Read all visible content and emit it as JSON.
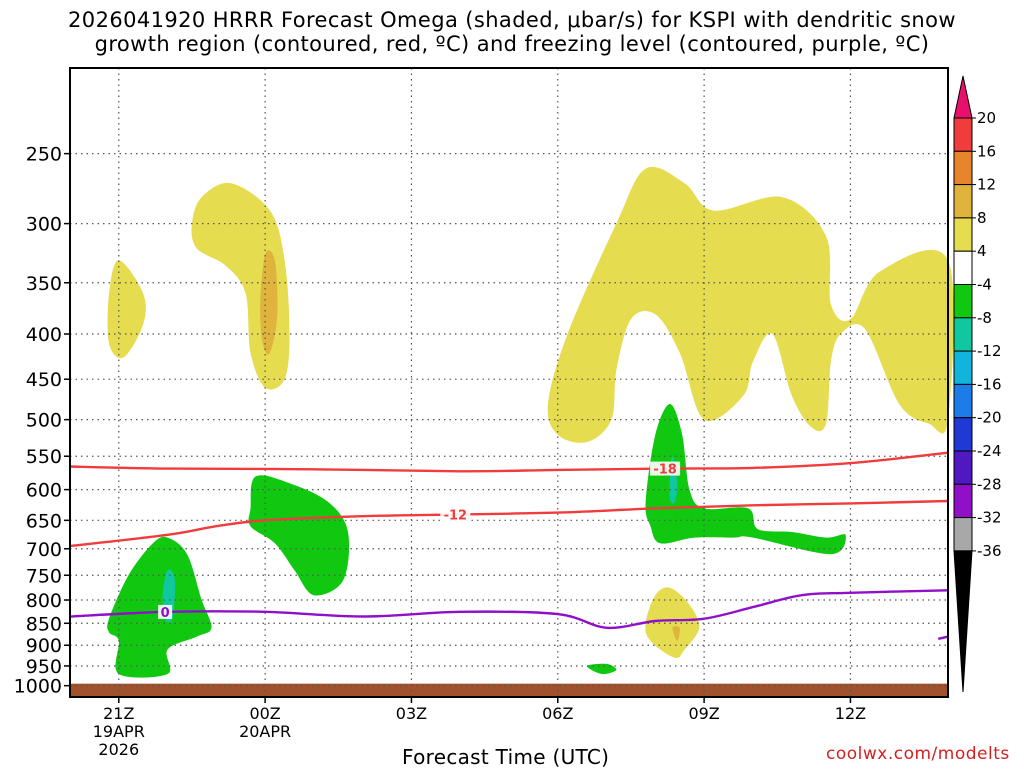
{
  "header": {
    "title_line1": "2026041920 HRRR Forecast Omega (shaded, μbar/s) for KSPI with dendritic snow",
    "title_line2": "growth region (contoured, red, ºC) and freezing level (contoured, purple, ºC)"
  },
  "footer": {
    "credit": "coolwx.com/modelts"
  },
  "chart_data": {
    "type": "heatmap",
    "title": "2026041920 HRRR Forecast Omega (shaded, μbar/s) for KSPI with dendritic snow growth region (contoured, red, ºC) and freezing level (contoured, purple, ºC)",
    "xlabel": "Forecast Time (UTC)",
    "ylabel": "",
    "y_scale": "log-pressure (inverted)",
    "y_ticks": [
      250,
      300,
      350,
      400,
      450,
      500,
      550,
      600,
      650,
      700,
      750,
      800,
      850,
      900,
      950,
      1000
    ],
    "x_ticks": [
      {
        "hours": 1,
        "line1": "21Z",
        "line2": "19APR",
        "line3": "2026"
      },
      {
        "hours": 4,
        "line1": "00Z",
        "line2": "20APR",
        "line3": ""
      },
      {
        "hours": 7,
        "line1": "03Z",
        "line2": "",
        "line3": ""
      },
      {
        "hours": 10,
        "line1": "06Z",
        "line2": "",
        "line3": ""
      },
      {
        "hours": 13,
        "line1": "09Z",
        "line2": "",
        "line3": ""
      },
      {
        "hours": 16,
        "line1": "12Z",
        "line2": "",
        "line3": ""
      }
    ],
    "xlim_hours": [
      0,
      18
    ],
    "ylim_hpa": [
      200,
      1030
    ],
    "grid": true,
    "colorbar": {
      "labels": [
        "20",
        "16",
        "12",
        "8",
        "4",
        "-4",
        "-8",
        "-12",
        "-16",
        "-20",
        "-24",
        "-28",
        "-32",
        "-36"
      ],
      "colors": [
        "#e8106c",
        "#f03c3c",
        "#e8842c",
        "#e0b43c",
        "#e6dc50",
        "#ffffff",
        "#10c810",
        "#10c8a0",
        "#10b4dc",
        "#1c7ce8",
        "#2038d4",
        "#5018c0",
        "#9010c8",
        "#a8a8a8",
        "#000000"
      ]
    },
    "omega_regions": [
      {
        "level": "4",
        "color": "#e6dc50",
        "label": "upper yellow 00Z",
        "points": [
          [
            2.5,
            300
          ],
          [
            2.7,
            280
          ],
          [
            3.3,
            270
          ],
          [
            4.1,
            290
          ],
          [
            4.4,
            330
          ],
          [
            4.5,
            400
          ],
          [
            4.4,
            450
          ],
          [
            4.0,
            460
          ],
          [
            3.7,
            420
          ],
          [
            3.6,
            360
          ],
          [
            3.2,
            335
          ],
          [
            2.6,
            320
          ]
        ]
      },
      {
        "level": "8",
        "color": "#e0b43c",
        "label": "orange core 00Z",
        "points": [
          [
            3.9,
            370
          ],
          [
            4.0,
            325
          ],
          [
            4.2,
            330
          ],
          [
            4.25,
            380
          ],
          [
            4.1,
            420
          ],
          [
            3.95,
            410
          ]
        ]
      },
      {
        "level": "4",
        "color": "#e6dc50",
        "label": "small yellow 21Z",
        "points": [
          [
            0.8,
            360
          ],
          [
            1.0,
            330
          ],
          [
            1.5,
            360
          ],
          [
            1.5,
            390
          ],
          [
            1.1,
            425
          ],
          [
            0.8,
            410
          ]
        ]
      },
      {
        "level": "4",
        "color": "#e6dc50",
        "label": "upper yellow morning",
        "points": [
          [
            9.8,
            480
          ],
          [
            10.2,
            400
          ],
          [
            11.2,
            300
          ],
          [
            11.8,
            260
          ],
          [
            12.6,
            270
          ],
          [
            13.2,
            290
          ],
          [
            14.6,
            280
          ],
          [
            15.5,
            310
          ],
          [
            15.6,
            370
          ],
          [
            16.0,
            385
          ],
          [
            16.6,
            340
          ],
          [
            18,
            330
          ],
          [
            18,
            500
          ],
          [
            17.6,
            505
          ],
          [
            17.0,
            480
          ],
          [
            16.3,
            395
          ],
          [
            15.8,
            400
          ],
          [
            15.6,
            430
          ],
          [
            15.5,
            505
          ],
          [
            15.2,
            510
          ],
          [
            14.8,
            470
          ],
          [
            14.4,
            400
          ],
          [
            14.0,
            430
          ],
          [
            13.8,
            470
          ],
          [
            13.0,
            500
          ],
          [
            12.5,
            420
          ],
          [
            12.0,
            380
          ],
          [
            11.5,
            385
          ],
          [
            11.2,
            440
          ],
          [
            11.1,
            500
          ],
          [
            10.6,
            530
          ],
          [
            10.0,
            520
          ]
        ]
      },
      {
        "level": "-4",
        "color": "#10c810",
        "label": "green 21Z",
        "points": [
          [
            0.8,
            840
          ],
          [
            1.2,
            750
          ],
          [
            1.7,
            690
          ],
          [
            2.0,
            680
          ],
          [
            2.4,
            710
          ],
          [
            2.7,
            800
          ],
          [
            2.9,
            860
          ],
          [
            2.6,
            880
          ],
          [
            2.0,
            910
          ],
          [
            2.0,
            970
          ],
          [
            1.0,
            970
          ],
          [
            1.0,
            890
          ],
          [
            0.8,
            870
          ]
        ]
      },
      {
        "level": "-8",
        "color": "#10c8a0",
        "label": "teal core 21Z",
        "points": [
          [
            1.9,
            790
          ],
          [
            2.0,
            740
          ],
          [
            2.15,
            760
          ],
          [
            2.1,
            840
          ],
          [
            1.95,
            840
          ]
        ]
      },
      {
        "level": "-4",
        "color": "#10c810",
        "label": "green 00Z",
        "points": [
          [
            3.7,
            630
          ],
          [
            3.8,
            580
          ],
          [
            4.5,
            590
          ],
          [
            5.3,
            620
          ],
          [
            5.7,
            670
          ],
          [
            5.6,
            760
          ],
          [
            5.0,
            790
          ],
          [
            4.6,
            740
          ],
          [
            4.2,
            690
          ],
          [
            3.7,
            660
          ]
        ]
      },
      {
        "level": "-4",
        "color": "#10c810",
        "label": "green morning",
        "points": [
          [
            11.8,
            620
          ],
          [
            12.0,
            520
          ],
          [
            12.3,
            480
          ],
          [
            12.55,
            520
          ],
          [
            12.7,
            600
          ],
          [
            13.0,
            630
          ],
          [
            13.9,
            630
          ],
          [
            14.1,
            665
          ],
          [
            14.8,
            670
          ],
          [
            15.5,
            680
          ],
          [
            15.9,
            675
          ],
          [
            15.6,
            710
          ],
          [
            14.0,
            680
          ],
          [
            13.6,
            680
          ],
          [
            12.8,
            680
          ],
          [
            12.1,
            690
          ],
          [
            11.9,
            660
          ]
        ]
      },
      {
        "level": "-8",
        "color": "#10c8a0",
        "label": "teal core morning",
        "points": [
          [
            12.3,
            580
          ],
          [
            12.35,
            550
          ],
          [
            12.45,
            590
          ],
          [
            12.4,
            620
          ],
          [
            12.3,
            615
          ]
        ]
      },
      {
        "level": "4",
        "color": "#e6dc50",
        "label": "low yellow morning",
        "points": [
          [
            11.8,
            850
          ],
          [
            12.0,
            790
          ],
          [
            12.3,
            775
          ],
          [
            12.7,
            810
          ],
          [
            12.9,
            860
          ],
          [
            12.6,
            910
          ],
          [
            12.4,
            930
          ],
          [
            11.9,
            890
          ]
        ]
      },
      {
        "level": "8",
        "color": "#e0b43c",
        "label": "low orange core",
        "points": [
          [
            12.35,
            860
          ],
          [
            12.5,
            860
          ],
          [
            12.45,
            890
          ]
        ]
      },
      {
        "level": "-4",
        "color": "#10c810",
        "label": "small green blip",
        "points": [
          [
            10.6,
            950
          ],
          [
            11.0,
            945
          ],
          [
            11.2,
            960
          ],
          [
            10.9,
            970
          ]
        ]
      }
    ],
    "contours": [
      {
        "name": "-18",
        "color": "#f03c3c",
        "label_at": 12.2,
        "points": [
          [
            0,
            565
          ],
          [
            2,
            568
          ],
          [
            5,
            569
          ],
          [
            8,
            572
          ],
          [
            10,
            570
          ],
          [
            12.2,
            568
          ],
          [
            14,
            567
          ],
          [
            16,
            560
          ],
          [
            18,
            545
          ]
        ]
      },
      {
        "name": "-12",
        "color": "#f03c3c",
        "label_at": 7.9,
        "points": [
          [
            0,
            695
          ],
          [
            2,
            675
          ],
          [
            3,
            660
          ],
          [
            4,
            650
          ],
          [
            6,
            643
          ],
          [
            8,
            640
          ],
          [
            10,
            637
          ],
          [
            12,
            630
          ],
          [
            14,
            625
          ],
          [
            16,
            622
          ],
          [
            18,
            618
          ]
        ]
      },
      {
        "name": "0",
        "color": "#9010c8",
        "label_at": 1.95,
        "points": [
          [
            0,
            835
          ],
          [
            2,
            825
          ],
          [
            4,
            825
          ],
          [
            6,
            835
          ],
          [
            8,
            825
          ],
          [
            10,
            830
          ],
          [
            11,
            860
          ],
          [
            12,
            845
          ],
          [
            13,
            840
          ],
          [
            14,
            815
          ],
          [
            15,
            790
          ],
          [
            16,
            785
          ],
          [
            18,
            780
          ]
        ]
      },
      {
        "name": "0",
        "color": "#9010c8",
        "label_at": null,
        "points": [
          [
            17.8,
            885
          ],
          [
            18,
            880
          ]
        ]
      }
    ],
    "surface_bar": {
      "color": "#a0522d",
      "from_hpa": 1000,
      "to_hpa": 1030
    }
  }
}
